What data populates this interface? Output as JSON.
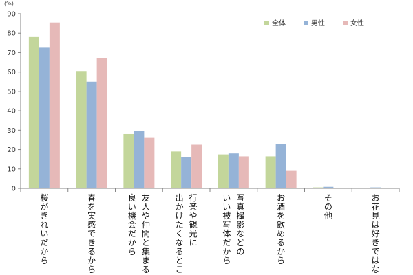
{
  "chart_data": {
    "type": "bar",
    "unit_label": "(%)",
    "ylim": [
      0,
      90
    ],
    "ytick_step": 10,
    "grid": false,
    "legend_position": "top-right",
    "categories": [
      [
        "桜がきれいだから"
      ],
      [
        "春を実感できるから"
      ],
      [
        "友人や仲間と集まる",
        "良い機会だから"
      ],
      [
        "行楽や観光に",
        "出かけたくなるところ"
      ],
      [
        "写真撮影などの",
        "いい被写体だから"
      ],
      [
        "お酒を飲めるから"
      ],
      [
        "その他"
      ],
      [
        "お花見は好きではない"
      ]
    ],
    "series": [
      {
        "name": "全体",
        "color": "#c3d69b",
        "values": [
          78.0,
          60.5,
          28.0,
          19.0,
          17.5,
          16.5,
          0.5,
          0.0
        ]
      },
      {
        "name": "男性",
        "color": "#95b3d7",
        "values": [
          72.5,
          55.0,
          29.5,
          16.0,
          18.0,
          23.0,
          0.8,
          0.5
        ]
      },
      {
        "name": "女性",
        "color": "#e6b9b8",
        "values": [
          85.5,
          67.0,
          26.0,
          22.5,
          16.5,
          9.0,
          0.3,
          0.0
        ]
      }
    ]
  }
}
